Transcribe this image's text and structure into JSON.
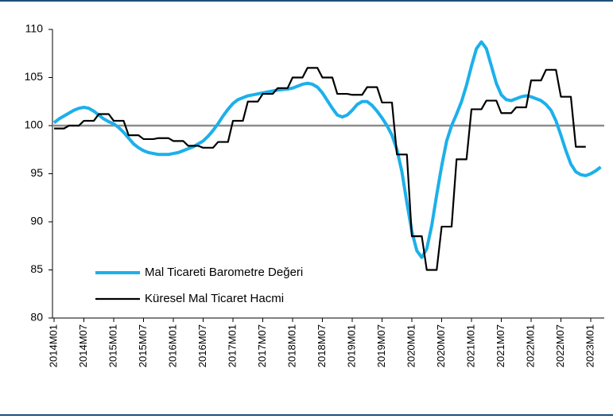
{
  "chart_data": {
    "type": "line",
    "categories": [
      "2014M01",
      null,
      null,
      null,
      null,
      null,
      "2014M07",
      null,
      null,
      null,
      null,
      null,
      "2015M01",
      null,
      null,
      null,
      null,
      null,
      "2015M07",
      null,
      null,
      null,
      null,
      null,
      "2016M01",
      null,
      null,
      null,
      null,
      null,
      "2016M07",
      null,
      null,
      null,
      null,
      null,
      "2017M01",
      null,
      null,
      null,
      null,
      null,
      "2017M07",
      null,
      null,
      null,
      null,
      null,
      "2018M01",
      null,
      null,
      null,
      null,
      null,
      "2018M07",
      null,
      null,
      null,
      null,
      null,
      "2019M01",
      null,
      null,
      null,
      null,
      null,
      "2019M07",
      null,
      null,
      null,
      null,
      null,
      "2020M01",
      null,
      null,
      null,
      null,
      null,
      "2020M07",
      null,
      null,
      null,
      null,
      null,
      "2021M01",
      null,
      null,
      null,
      null,
      null,
      "2021M07",
      null,
      null,
      null,
      null,
      null,
      "2022M01",
      null,
      null,
      null,
      null,
      null,
      "2022M07",
      null,
      null,
      null,
      null,
      null,
      "2023M01",
      null,
      null
    ],
    "series": [
      {
        "name": "Mal Ticareti Barometre Değeri",
        "color": "#1cb0ea",
        "values": [
          100.3,
          100.7,
          101.0,
          101.3,
          101.6,
          101.8,
          101.9,
          101.8,
          101.5,
          101.1,
          100.7,
          100.4,
          100.2,
          99.8,
          99.3,
          98.7,
          98.1,
          97.7,
          97.4,
          97.2,
          97.1,
          97.0,
          97.0,
          97.0,
          97.1,
          97.2,
          97.4,
          97.6,
          97.8,
          98.1,
          98.4,
          98.9,
          99.5,
          100.2,
          101.0,
          101.7,
          102.3,
          102.7,
          102.9,
          103.1,
          103.2,
          103.3,
          103.4,
          103.5,
          103.6,
          103.7,
          103.75,
          103.8,
          103.9,
          104.1,
          104.3,
          104.4,
          104.3,
          104.0,
          103.4,
          102.6,
          101.8,
          101.1,
          100.9,
          101.1,
          101.6,
          102.2,
          102.5,
          102.5,
          102.1,
          101.5,
          100.8,
          100.0,
          99.0,
          97.5,
          95.2,
          92.0,
          89.0,
          87.0,
          86.3,
          87.2,
          89.6,
          92.8,
          95.8,
          98.4,
          100.0,
          101.2,
          102.5,
          104.2,
          106.2,
          108.0,
          108.7,
          108.0,
          106.2,
          104.4,
          103.2,
          102.7,
          102.6,
          102.8,
          103.0,
          103.1,
          103.0,
          102.8,
          102.6,
          102.2,
          101.6,
          100.5,
          99.0,
          97.4,
          96.0,
          95.2,
          94.9,
          94.8,
          95.0,
          95.3,
          95.7
        ]
      },
      {
        "name": "Küresel Mal Ticaret Hacmi",
        "color": "#000000",
        "values": [
          99.7,
          99.7,
          99.7,
          100.0,
          100.0,
          100.0,
          100.5,
          100.5,
          100.5,
          101.2,
          101.2,
          101.2,
          100.5,
          100.5,
          100.5,
          99.0,
          99.0,
          99.0,
          98.6,
          98.6,
          98.6,
          98.7,
          98.7,
          98.7,
          98.4,
          98.4,
          98.4,
          97.9,
          97.9,
          97.9,
          97.7,
          97.7,
          97.7,
          98.3,
          98.3,
          98.3,
          100.5,
          100.5,
          100.5,
          102.5,
          102.5,
          102.5,
          103.3,
          103.3,
          103.3,
          103.9,
          103.9,
          103.9,
          105.0,
          105.0,
          105.0,
          106.0,
          106.0,
          106.0,
          105.0,
          105.0,
          105.0,
          103.3,
          103.3,
          103.3,
          103.2,
          103.2,
          103.2,
          104.0,
          104.0,
          104.0,
          102.4,
          102.4,
          102.4,
          97.0,
          97.0,
          97.0,
          88.5,
          88.5,
          88.5,
          85.0,
          85.0,
          85.0,
          89.5,
          89.5,
          89.5,
          96.5,
          96.5,
          96.5,
          101.7,
          101.7,
          101.7,
          102.6,
          102.6,
          102.6,
          101.3,
          101.3,
          101.3,
          101.9,
          101.9,
          101.9,
          104.7,
          104.7,
          104.7,
          105.8,
          105.8,
          105.8,
          103.0,
          103.0,
          103.0,
          97.8,
          97.8,
          97.8,
          null,
          null,
          null
        ]
      }
    ],
    "ylim": [
      80,
      110
    ],
    "yticks": [
      80,
      85,
      90,
      95,
      100,
      105,
      110
    ],
    "reference_line": 100,
    "legend": "lower left"
  }
}
